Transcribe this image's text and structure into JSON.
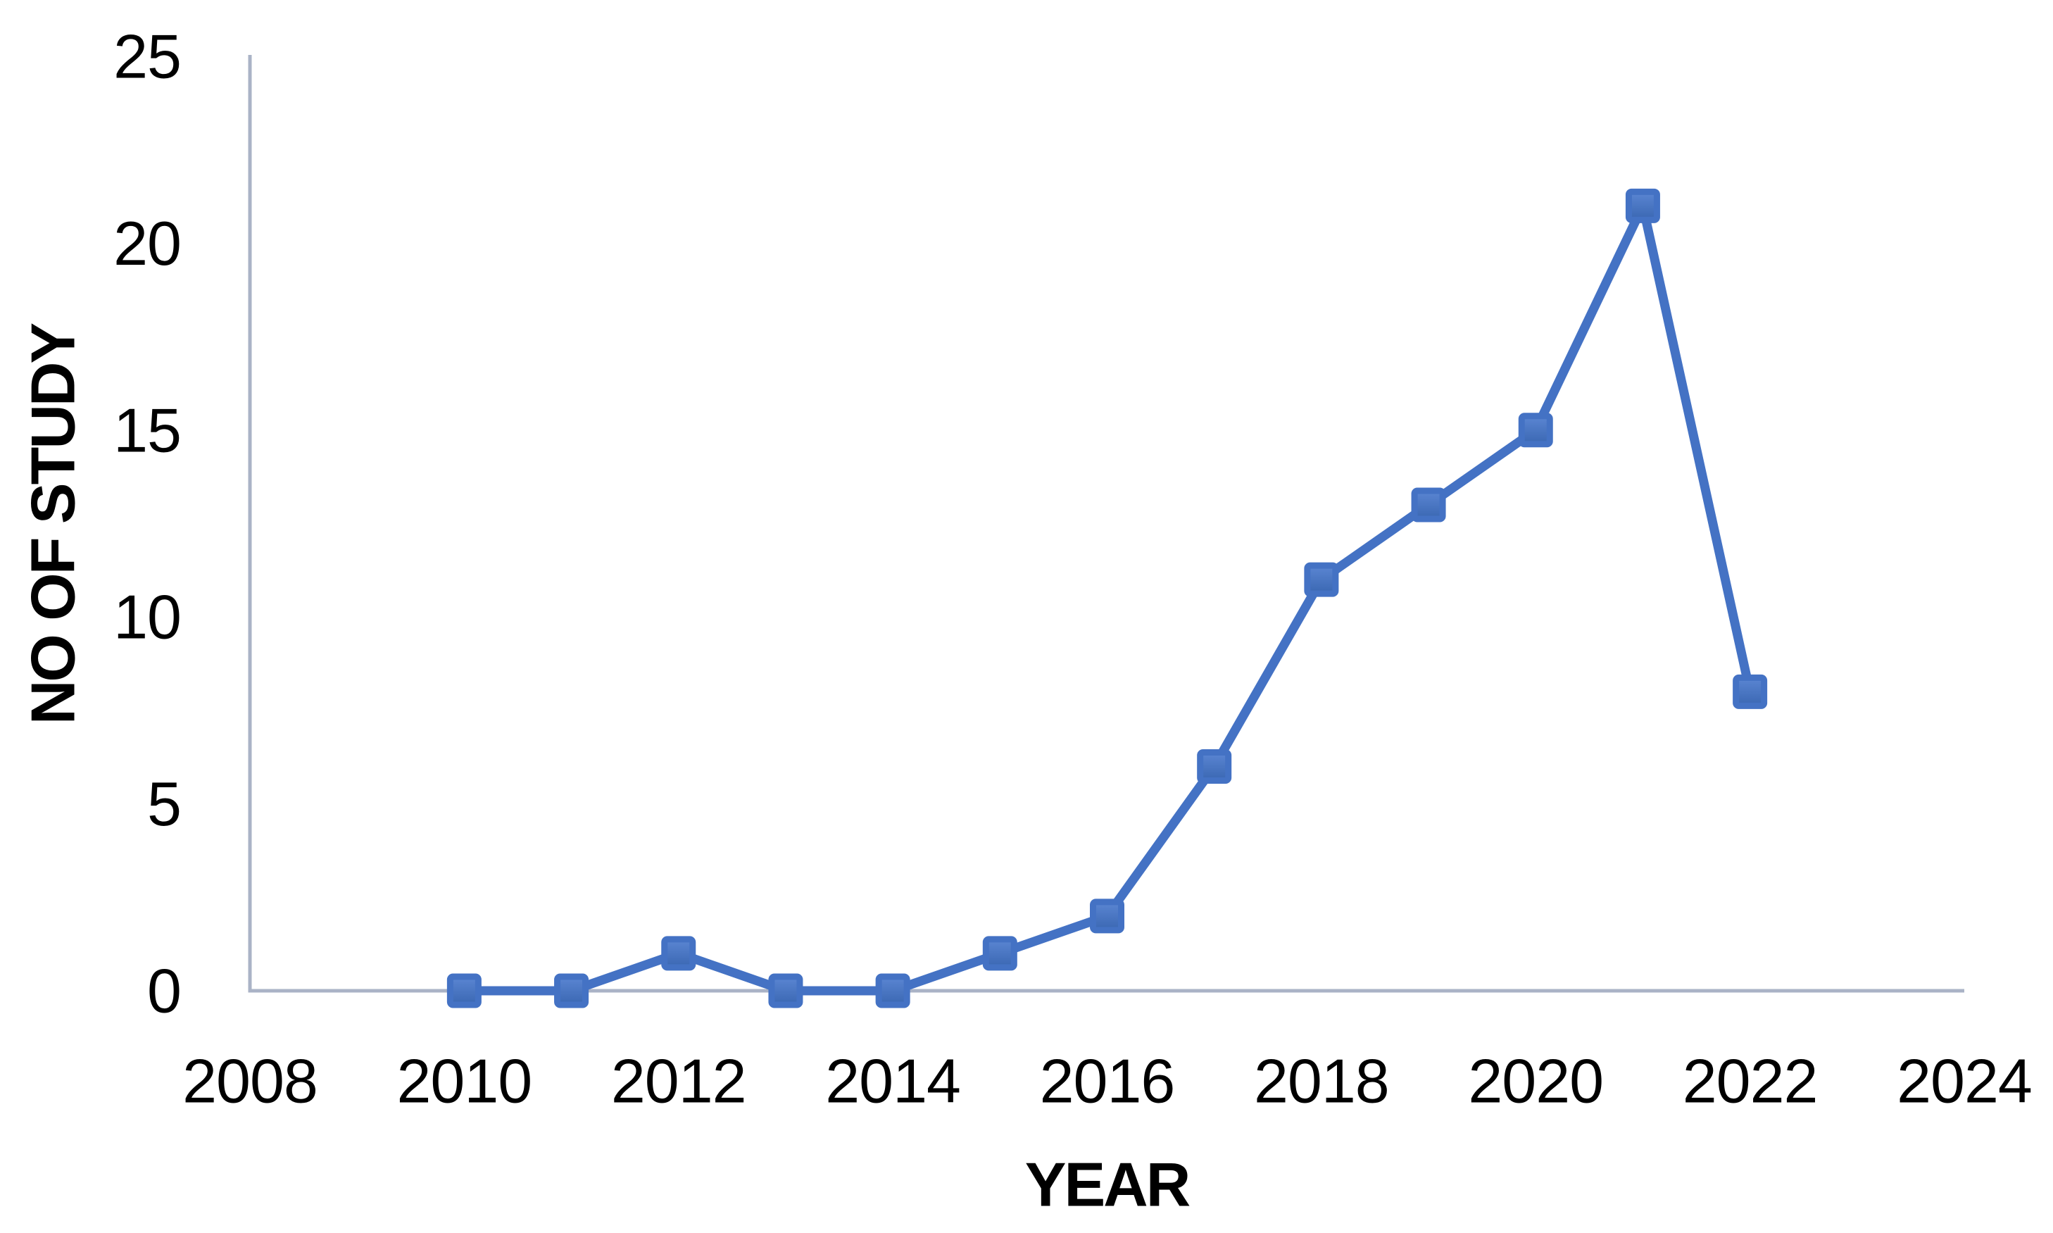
{
  "figure": {
    "background": "#ffffff"
  },
  "chart_data": {
    "type": "line",
    "title": "",
    "xlabel": "YEAR",
    "ylabel": "NO OF STUDY",
    "x": [
      2010,
      2011,
      2012,
      2013,
      2014,
      2015,
      2016,
      2017,
      2018,
      2019,
      2020,
      2021,
      2022
    ],
    "values": [
      0,
      0,
      1,
      0,
      0,
      1,
      2,
      6,
      11,
      13,
      15,
      21,
      8
    ],
    "series": [
      {
        "name": "NO OF STUDY",
        "values": [
          0,
          0,
          1,
          0,
          0,
          1,
          2,
          6,
          11,
          13,
          15,
          21,
          8
        ]
      }
    ],
    "xticks": [
      2008,
      2010,
      2012,
      2014,
      2016,
      2018,
      2020,
      2022,
      2024
    ],
    "yticks": [
      0,
      5,
      10,
      15,
      20,
      25
    ],
    "xlim": [
      2008,
      2024
    ],
    "ylim": [
      0,
      25
    ],
    "grid": false,
    "legend": "none",
    "marker": "square",
    "colors": {
      "line": "#4472C4",
      "marker_border": "#4472C4",
      "marker_fill_top": "#5b86d3",
      "marker_fill_bottom": "#3a67b2",
      "axis": "#aab3c6",
      "text": "#000000"
    }
  }
}
